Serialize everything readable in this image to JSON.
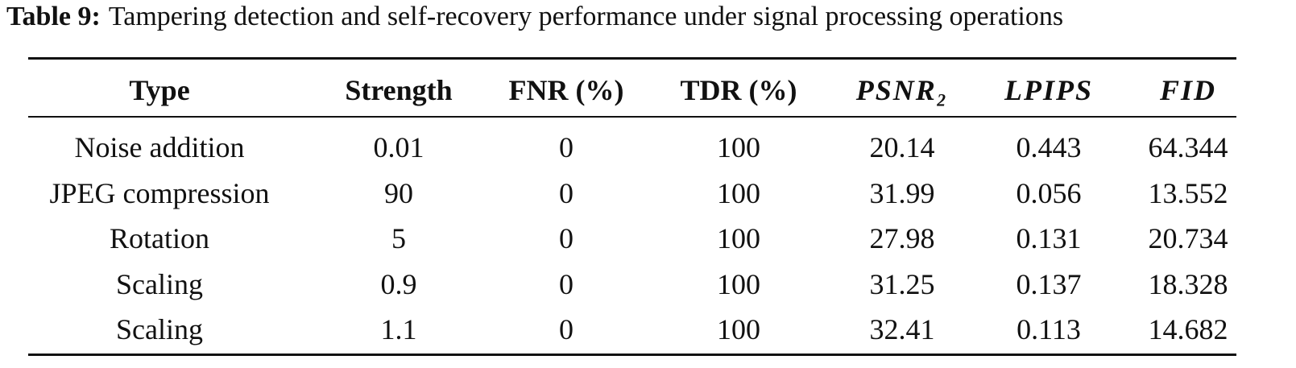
{
  "caption": {
    "label": "Table 9:",
    "text": "Tampering detection and self-recovery performance under signal processing operations"
  },
  "table": {
    "header": [
      "Type",
      "Strength",
      "FNR (%)",
      "TDR (%)",
      "PSNR₂",
      "LPIPS",
      "FID"
    ],
    "rows": [
      [
        "Noise addition",
        "0.01",
        "0",
        "100",
        "20.14",
        "0.443",
        "64.344"
      ],
      [
        "JPEG compression",
        "90",
        "0",
        "100",
        "31.99",
        "0.056",
        "13.552"
      ],
      [
        "Rotation",
        "5",
        "0",
        "100",
        "27.98",
        "0.131",
        "20.734"
      ],
      [
        "Scaling",
        "0.9",
        "0",
        "100",
        "31.25",
        "0.137",
        "18.328"
      ],
      [
        "Scaling",
        "1.1",
        "0",
        "100",
        "32.41",
        "0.113",
        "14.682"
      ]
    ]
  }
}
